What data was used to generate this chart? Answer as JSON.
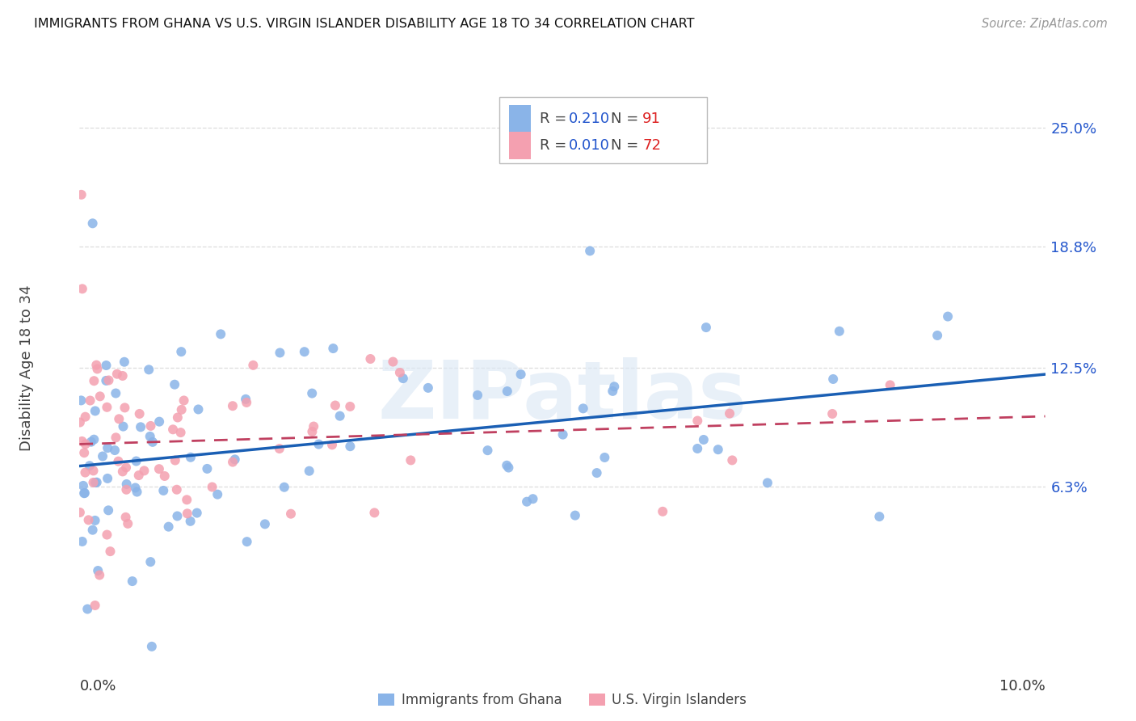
{
  "title": "IMMIGRANTS FROM GHANA VS U.S. VIRGIN ISLANDER DISABILITY AGE 18 TO 34 CORRELATION CHART",
  "source": "Source: ZipAtlas.com",
  "ylabel": "Disability Age 18 to 34",
  "ytick_labels": [
    "6.3%",
    "12.5%",
    "18.8%",
    "25.0%"
  ],
  "ytick_values": [
    0.063,
    0.125,
    0.188,
    0.25
  ],
  "xlim": [
    0.0,
    0.1
  ],
  "ylim": [
    -0.025,
    0.275
  ],
  "ghana_R": 0.21,
  "ghana_N": 91,
  "vi_R": 0.01,
  "vi_N": 72,
  "ghana_color": "#8ab4e8",
  "vi_color": "#f4a0b0",
  "ghana_line_color": "#1a5fb4",
  "vi_line_color": "#c04060",
  "watermark": "ZIPatlas",
  "ghana_scatter_seed": 42,
  "vi_scatter_seed": 99
}
